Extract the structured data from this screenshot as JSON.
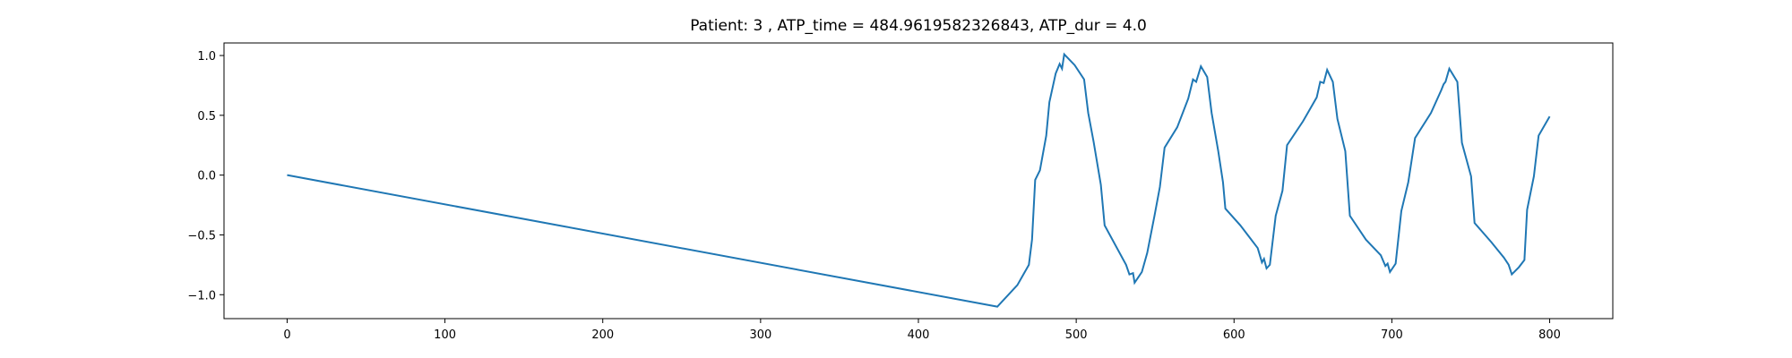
{
  "chart_data": {
    "type": "line",
    "title": "Patient: 3 , ATP_time = 484.9619582326843, ATP_dur = 4.0",
    "x": [
      0,
      450,
      462.7,
      470,
      472,
      474,
      477,
      481,
      483,
      487,
      489.5,
      491,
      492.4,
      499,
      505,
      507.6,
      511,
      515.6,
      518,
      531.6,
      533.7,
      536,
      537,
      541.6,
      545,
      549.6,
      553,
      556,
      564,
      571,
      574,
      576,
      579,
      583,
      585.8,
      590,
      593,
      594.5,
      604,
      615,
      617.7,
      619,
      620.6,
      622.7,
      626.4,
      630.7,
      633.6,
      643.7,
      652.4,
      654.6,
      656.8,
      659,
      662.6,
      665.5,
      670.5,
      673.4,
      683.6,
      693,
      695.9,
      697.3,
      698.8,
      702.4,
      706,
      710.4,
      714.7,
      724.8,
      731.3,
      732.8,
      734,
      736.4,
      741.5,
      744.4,
      750.2,
      752.4,
      763,
      771,
      774,
      776,
      780.5,
      784,
      785.7,
      790,
      793,
      800
    ],
    "series": [
      {
        "color": "#1f77b4",
        "values": [
          0,
          -1.1,
          -0.92,
          -0.75,
          -0.54,
          -0.04,
          0.04,
          0.33,
          0.61,
          0.85,
          0.93,
          0.89,
          1.01,
          0.92,
          0.8,
          0.52,
          0.28,
          -0.08,
          -0.42,
          -0.75,
          -0.83,
          -0.82,
          -0.9,
          -0.81,
          -0.65,
          -0.34,
          -0.1,
          0.23,
          0.4,
          0.64,
          0.8,
          0.78,
          0.91,
          0.82,
          0.52,
          0.2,
          -0.06,
          -0.28,
          -0.42,
          -0.61,
          -0.73,
          -0.7,
          -0.78,
          -0.75,
          -0.34,
          -0.13,
          0.25,
          0.45,
          0.65,
          0.78,
          0.77,
          0.88,
          0.78,
          0.47,
          0.2,
          -0.34,
          -0.54,
          -0.67,
          -0.76,
          -0.74,
          -0.81,
          -0.74,
          -0.3,
          -0.06,
          0.31,
          0.52,
          0.71,
          0.76,
          0.78,
          0.89,
          0.78,
          0.27,
          -0.01,
          -0.4,
          -0.56,
          -0.69,
          -0.75,
          -0.83,
          -0.77,
          -0.71,
          -0.29,
          -0.01,
          0.33,
          0.49
        ]
      }
    ],
    "xlim": [
      -40,
      840
    ],
    "xticks": [
      0,
      100,
      200,
      300,
      400,
      500,
      600,
      700,
      800
    ],
    "ylim": [
      -1.2,
      1.105
    ],
    "yticks": [
      {
        "value": 1,
        "label": "1.0"
      },
      {
        "value": 0.5,
        "label": "0.5"
      },
      {
        "value": 0,
        "label": "0.0"
      },
      {
        "value": -0.5,
        "label": "−0.5"
      },
      {
        "value": -1,
        "label": "−1.0"
      }
    ]
  }
}
